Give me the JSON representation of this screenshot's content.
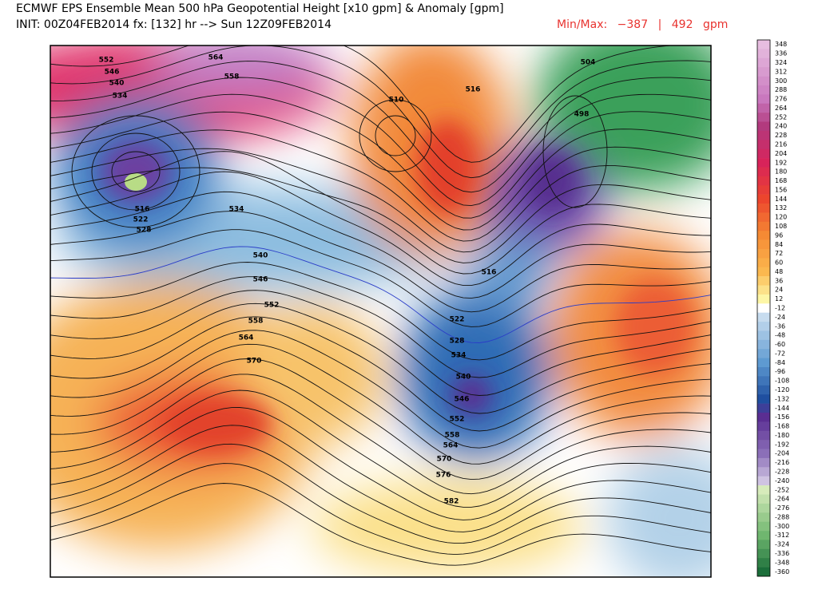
{
  "header": {
    "title": "ECMWF EPS Ensemble Mean 500 hPa Geopotential Height [x10 gpm] & Anomaly [gpm]",
    "init": "INIT: 00Z04FEB2014 fx: [132] hr --> Sun 12Z09FEB2014",
    "minmax": {
      "label": "Min/Max:",
      "min": "−387",
      "separator": "|",
      "max": "492",
      "unit": "gpm"
    }
  },
  "colorbar": {
    "labels": [
      348,
      336,
      324,
      312,
      300,
      288,
      276,
      264,
      252,
      240,
      228,
      216,
      204,
      192,
      180,
      168,
      156,
      144,
      132,
      120,
      108,
      96,
      84,
      72,
      60,
      48,
      36,
      24,
      12,
      -12,
      -24,
      -36,
      -48,
      -60,
      -72,
      -84,
      -96,
      -108,
      -120,
      -132,
      -144,
      -156,
      -168,
      -180,
      -192,
      -204,
      -216,
      -228,
      -240,
      -252,
      -264,
      -276,
      -288,
      -300,
      -312,
      -324,
      -336,
      -348,
      -360
    ]
  },
  "map": {
    "contour_labels": [
      "552",
      "546",
      "540",
      "534",
      "564",
      "558",
      "516",
      "522",
      "528",
      "534",
      "540",
      "546",
      "552",
      "558",
      "564",
      "570",
      "510",
      "516",
      "504",
      "498",
      "516",
      "522",
      "528",
      "534",
      "540",
      "546",
      "552",
      "558",
      "564",
      "570",
      "576",
      "582"
    ]
  }
}
